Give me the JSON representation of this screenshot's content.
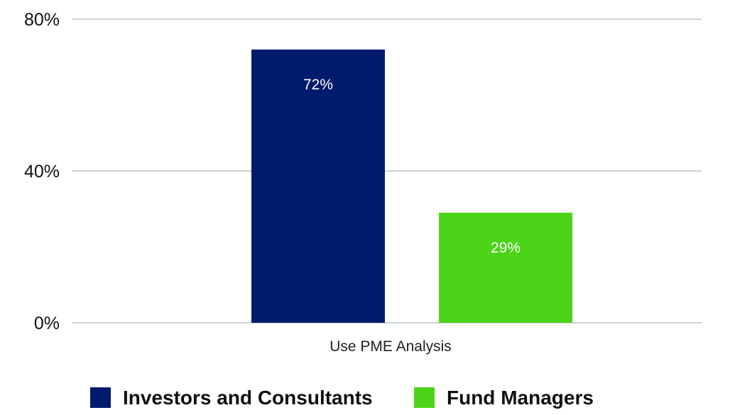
{
  "chart_data": {
    "type": "bar",
    "title": "",
    "xlabel": "",
    "ylabel": "",
    "categories": [
      "Use PME Analysis"
    ],
    "series": [
      {
        "name": "Investors and Consultants",
        "values": [
          72
        ],
        "value_labels": [
          "72%"
        ],
        "color": "#001a6e"
      },
      {
        "name": "Fund Managers",
        "values": [
          29
        ],
        "value_labels": [
          "29%"
        ],
        "color": "#4cd419"
      }
    ],
    "ylim": [
      0,
      80
    ],
    "y_ticks": [
      0,
      40,
      80
    ],
    "y_tick_labels": [
      "0%",
      "40%",
      "80%"
    ],
    "grid": true,
    "grid_color": "#c9d3d3",
    "legend_position": "bottom"
  }
}
